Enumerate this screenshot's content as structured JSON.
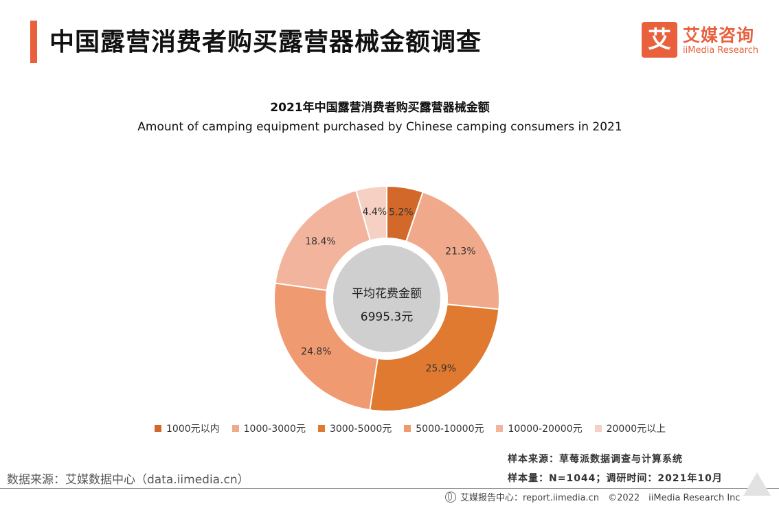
{
  "header": {
    "title": "中国露营消费者购买露营器械金额调查",
    "logo_mark": "艾",
    "logo_cn": "艾媒咨询",
    "logo_en": "iiMedia Research",
    "accent_color": "#e8603c"
  },
  "chart_data": {
    "type": "pie",
    "title": "2021年中国露营消费者购买露营器械金额",
    "subtitle": "Amount of camping equipment purchased by Chinese camping consumers in 2021",
    "donut": true,
    "center_label": "平均花费金额",
    "center_value": "6995.3元",
    "legend_position": "bottom",
    "slices": [
      {
        "label": "1000元以内",
        "value": 5.2,
        "display": "5.2%",
        "color": "#d2692a"
      },
      {
        "label": "1000-3000元",
        "value": 21.3,
        "display": "21.3%",
        "color": "#f0a98a"
      },
      {
        "label": "3000-5000元",
        "value": 25.9,
        "display": "25.9%",
        "color": "#e07a30"
      },
      {
        "label": "5000-10000元",
        "value": 24.8,
        "display": "24.8%",
        "color": "#f09a72"
      },
      {
        "label": "10000-20000元",
        "value": 18.4,
        "display": "18.4%",
        "color": "#f2b49c"
      },
      {
        "label": "20000元以上",
        "value": 4.4,
        "display": "4.4%",
        "color": "#f6d0c2"
      }
    ]
  },
  "footer": {
    "source_left": "数据来源：艾媒数据中心（data.iimedia.cn）",
    "sample_source": "样本来源：草莓派数据调查与计算系统",
    "sample_info": "样本量：N=1044；调研时间：2021年10月",
    "report_center": "艾媒报告中心：report.iimedia.cn　©2022　iiMedia Research  Inc"
  }
}
